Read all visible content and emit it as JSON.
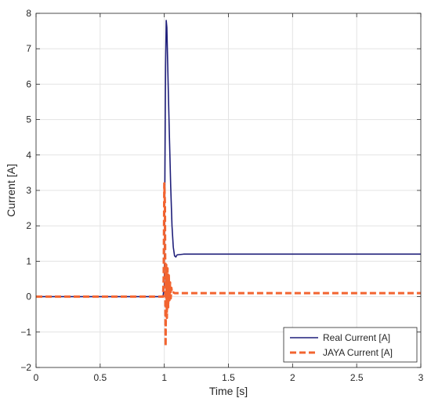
{
  "chart_data": {
    "type": "line",
    "title": "",
    "xlabel": "Time [s]",
    "ylabel": "Current [A]",
    "xlim": [
      0,
      3
    ],
    "ylim": [
      -2,
      8
    ],
    "xticks": [
      0,
      0.5,
      1,
      1.5,
      2,
      2.5,
      3
    ],
    "xtick_labels": [
      "0",
      "0.5",
      "1",
      "1.5",
      "2",
      "2.5",
      "3"
    ],
    "yticks": [
      -2,
      -1,
      0,
      1,
      2,
      3,
      4,
      5,
      6,
      7,
      8
    ],
    "ytick_labels": [
      "−2",
      "−1",
      "0",
      "1",
      "2",
      "3",
      "4",
      "5",
      "6",
      "7",
      "8"
    ],
    "grid": true,
    "legend_position": "bottom-right",
    "series": [
      {
        "name": "Real Current [A]",
        "color": "#1f1f7a",
        "style": "solid",
        "x": [
          0,
          0.5,
          0.99,
          1.0,
          1.005,
          1.01,
          1.015,
          1.02,
          1.03,
          1.04,
          1.05,
          1.06,
          1.07,
          1.08,
          1.09,
          1.1,
          1.15,
          1.5,
          2.0,
          2.5,
          3.0
        ],
        "y": [
          0,
          0,
          0,
          0.3,
          3.5,
          6.5,
          7.8,
          7.6,
          6.0,
          4.5,
          3.1,
          2.0,
          1.4,
          1.15,
          1.12,
          1.18,
          1.2,
          1.2,
          1.2,
          1.2,
          1.2
        ]
      },
      {
        "name": "JAYA Current [A]",
        "color": "#f26430",
        "style": "dashed",
        "x": [
          0,
          0.5,
          0.99,
          0.995,
          1.0,
          1.005,
          1.01,
          1.015,
          1.02,
          1.025,
          1.03,
          1.035,
          1.04,
          1.045,
          1.05,
          1.055,
          1.06,
          1.07,
          1.08,
          1.5,
          2.0,
          2.5,
          3.0
        ],
        "y": [
          0,
          0,
          0,
          0.5,
          3.2,
          2.6,
          -1.4,
          0.9,
          -0.6,
          0.8,
          -0.3,
          0.6,
          -0.1,
          0.4,
          -0.05,
          0.25,
          0.1,
          0.12,
          0.1,
          0.1,
          0.1,
          0.1,
          0.1
        ]
      }
    ]
  }
}
